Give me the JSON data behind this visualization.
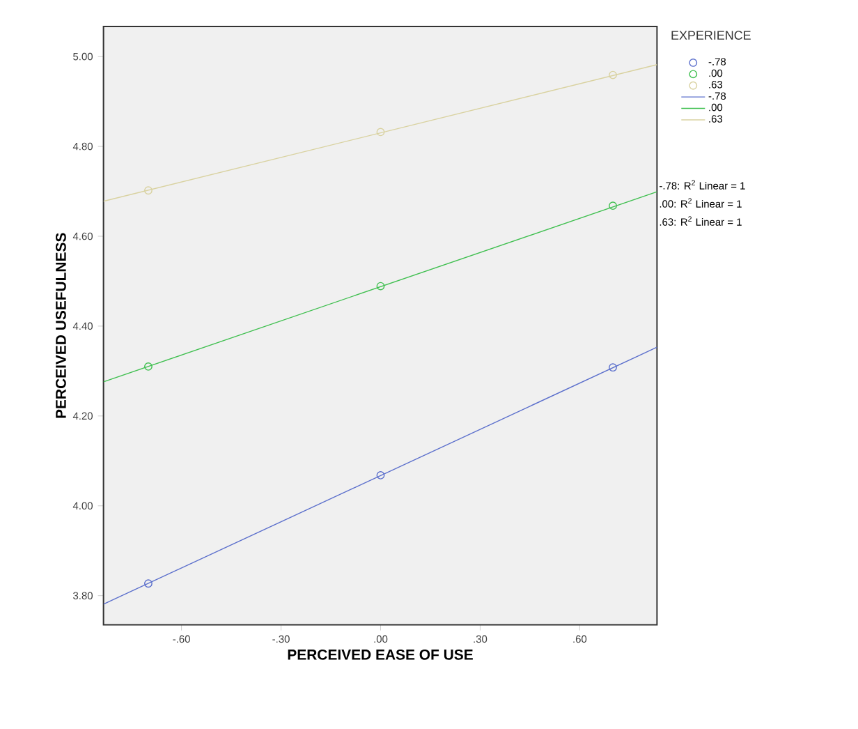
{
  "chart_data": {
    "type": "scatter",
    "xlabel": "PERCEIVED EASE OF USE",
    "ylabel": "PERCEIVED USEFULNESS",
    "legend_title": "EXPERIENCE",
    "legend": "right",
    "marker": "circle",
    "grid": false,
    "xlim": [
      -0.835,
      0.833
    ],
    "ylim": [
      3.735,
      5.067
    ],
    "xticks": [
      {
        "value": -0.6,
        "label": "-.60"
      },
      {
        "value": -0.3,
        "label": "-.30"
      },
      {
        "value": 0,
        "label": ".00"
      },
      {
        "value": 0.3,
        "label": ".30"
      },
      {
        "value": 0.6,
        "label": ".60"
      }
    ],
    "yticks": [
      {
        "value": 3.8,
        "label": "3.80"
      },
      {
        "value": 4.0,
        "label": "4.00"
      },
      {
        "value": 4.2,
        "label": "4.20"
      },
      {
        "value": 4.4,
        "label": "4.40"
      },
      {
        "value": 4.6,
        "label": "4.60"
      },
      {
        "value": 4.8,
        "label": "4.80"
      },
      {
        "value": 5.0,
        "label": "5.00"
      }
    ],
    "series": [
      {
        "name": "-.78",
        "color": "#5b6fcc",
        "x": [
          -0.7,
          0,
          0.7
        ],
        "values": [
          3.827,
          4.068,
          4.308
        ]
      },
      {
        "name": ".00",
        "color": "#3fbf4f",
        "x": [
          -0.7,
          0,
          0.7
        ],
        "values": [
          4.31,
          4.489,
          4.668
        ]
      },
      {
        "name": ".63",
        "color": "#d9d2a0",
        "x": [
          -0.7,
          0,
          0.7
        ],
        "values": [
          4.702,
          4.832,
          4.959
        ]
      },
      {
        "name": "-.78",
        "type": "line",
        "marker": "none",
        "color": "#5b6fcc",
        "x": [
          -0.835,
          0.833
        ],
        "values": [
          3.781,
          4.353
        ]
      },
      {
        "name": ".00",
        "type": "line",
        "marker": "none",
        "color": "#3fbf4f",
        "x": [
          -0.835,
          0.833
        ],
        "values": [
          4.276,
          4.699
        ]
      },
      {
        "name": ".63",
        "type": "line",
        "marker": "none",
        "color": "#d9d2a0",
        "x": [
          -0.835,
          0.833
        ],
        "values": [
          4.678,
          4.982
        ]
      }
    ],
    "annotations": [
      "-.78: R$^{2}$ Linear = 1",
      ".00: R$^{2}$ Linear = 1",
      ".63: R$^{2}$ Linear = 1"
    ]
  }
}
